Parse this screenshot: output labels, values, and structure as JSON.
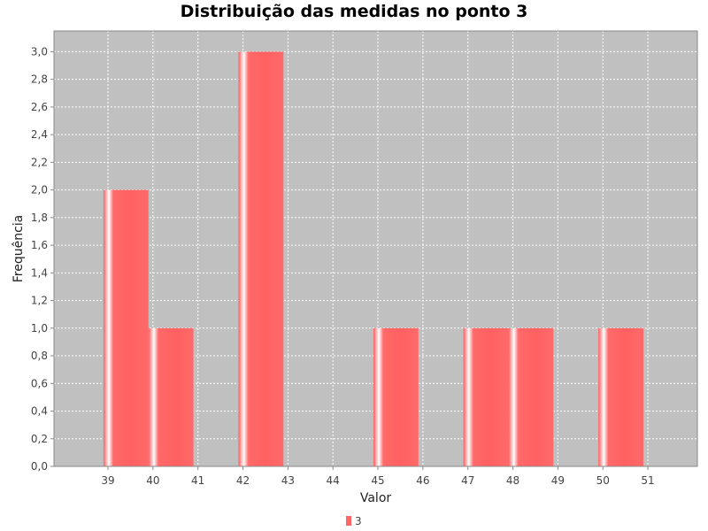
{
  "chart_data": {
    "type": "bar",
    "title": "Distribuição das medidas no ponto 3",
    "xlabel": "Valor",
    "ylabel": "Frequência",
    "xlim": [
      37.8,
      52.1
    ],
    "ylim": [
      0,
      3.15
    ],
    "x_ticks": [
      39,
      40,
      41,
      42,
      43,
      44,
      45,
      46,
      47,
      48,
      49,
      50,
      51
    ],
    "y_ticks": [
      0,
      0.2,
      0.4,
      0.6,
      0.8,
      1.0,
      1.2,
      1.4,
      1.6,
      1.8,
      2.0,
      2.2,
      2.4,
      2.6,
      2.8,
      3.0
    ],
    "y_tick_labels": [
      "0,0",
      "0,2",
      "0,4",
      "0,6",
      "0,8",
      "1,0",
      "1,2",
      "1,4",
      "1,6",
      "1,8",
      "2,0",
      "2,2",
      "2,4",
      "2,6",
      "2,8",
      "3,0"
    ],
    "bars": [
      {
        "x_start": 38.9,
        "x_end": 39.9,
        "value": 2
      },
      {
        "x_start": 39.9,
        "x_end": 40.9,
        "value": 1
      },
      {
        "x_start": 41.9,
        "x_end": 42.9,
        "value": 3
      },
      {
        "x_start": 44.9,
        "x_end": 45.9,
        "value": 1
      },
      {
        "x_start": 46.9,
        "x_end": 47.9,
        "value": 1
      },
      {
        "x_start": 47.9,
        "x_end": 48.9,
        "value": 1
      },
      {
        "x_start": 49.9,
        "x_end": 50.9,
        "value": 1
      }
    ],
    "series": [
      {
        "name": "3",
        "color": "#ff6666"
      }
    ],
    "grid": true,
    "plot_background": "#c0c0c0",
    "legend_position": "bottom"
  }
}
